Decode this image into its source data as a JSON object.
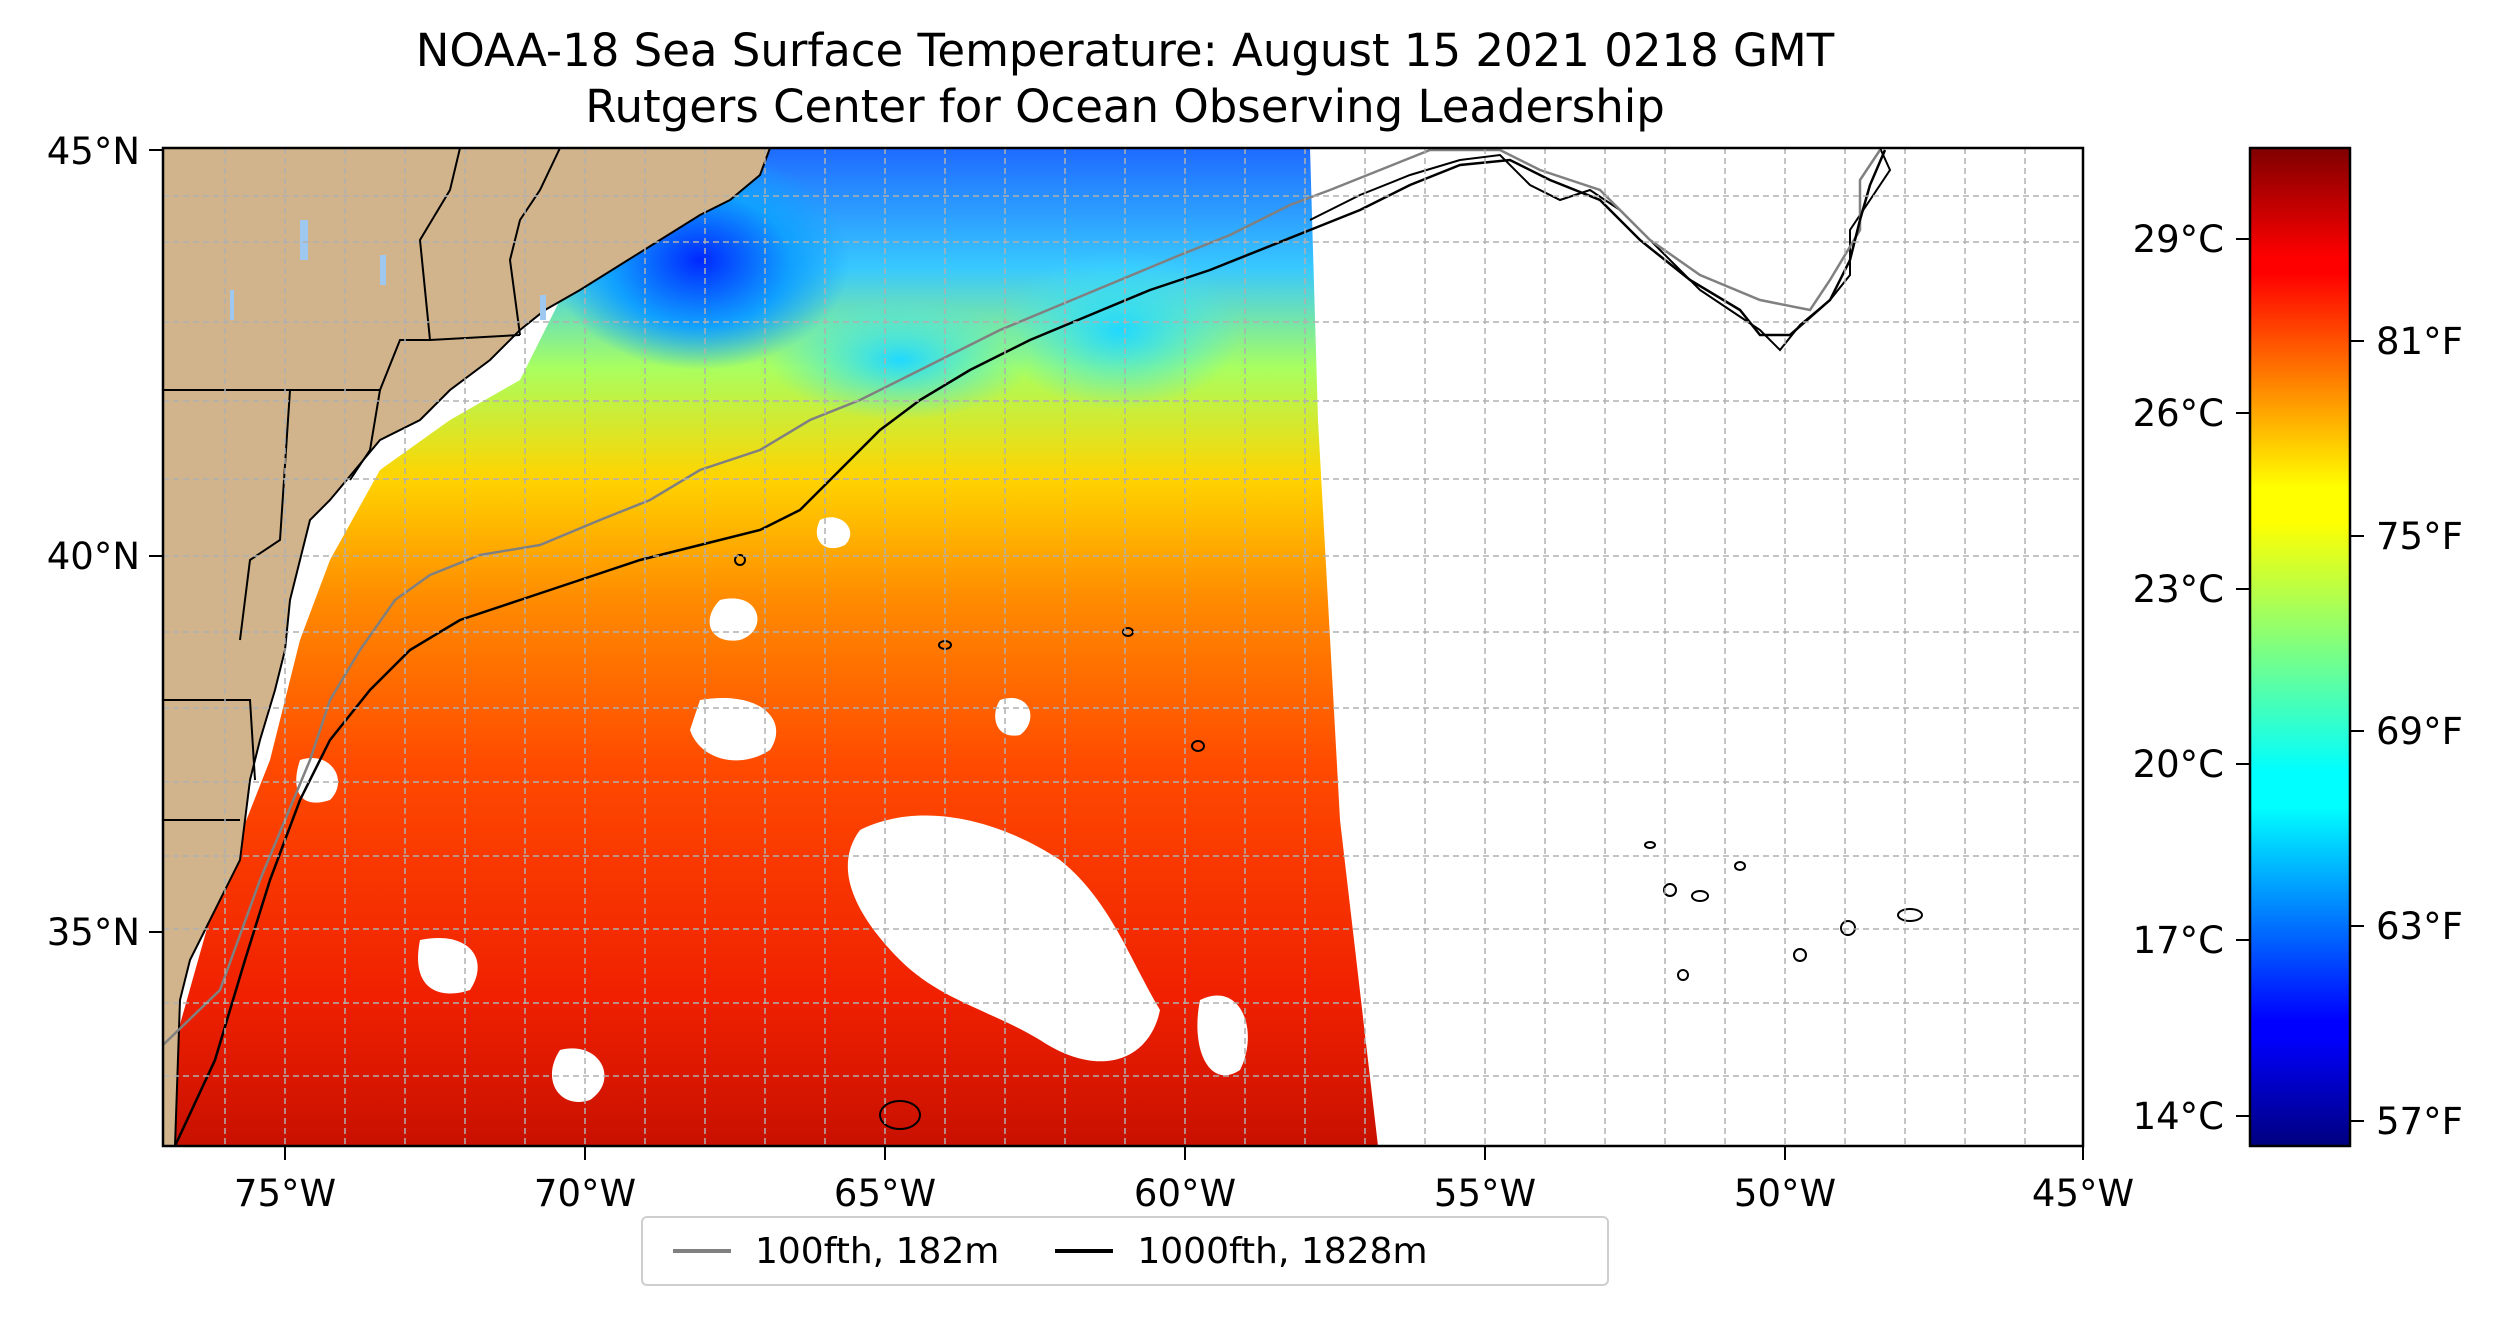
{
  "title": {
    "line1": "NOAA-18 Sea Surface Temperature: August 15 2021 0218 GMT",
    "line2": "Rutgers Center for Ocean Observing Leadership"
  },
  "map": {
    "lon_range": [
      -77,
      -45
    ],
    "lat_range": [
      32.2,
      45
    ],
    "lon_ticks": [
      "75°W",
      "70°W",
      "65°W",
      "60°W",
      "55°W",
      "50°W",
      "45°W"
    ],
    "lat_ticks": [
      "35°N",
      "40°N",
      "45°N"
    ],
    "gridlines": true,
    "land_color": "#d2b48c",
    "lake_color": "#9ec8f0",
    "contour_100_color": "#808080",
    "contour_1000_color": "#000000"
  },
  "colorbar": {
    "colormap": "jet",
    "range_c": [
      13.4,
      31.2
    ],
    "celsius_labels": [
      "29°C",
      "26°C",
      "23°C",
      "20°C",
      "17°C",
      "14°C"
    ],
    "fahrenheit_labels": [
      "81°F",
      "75°F",
      "69°F",
      "63°F",
      "57°F"
    ]
  },
  "legend": {
    "items": [
      {
        "label": "100fth, 182m",
        "color": "#808080"
      },
      {
        "label": "1000fth, 1828m",
        "color": "#000000"
      }
    ]
  }
}
